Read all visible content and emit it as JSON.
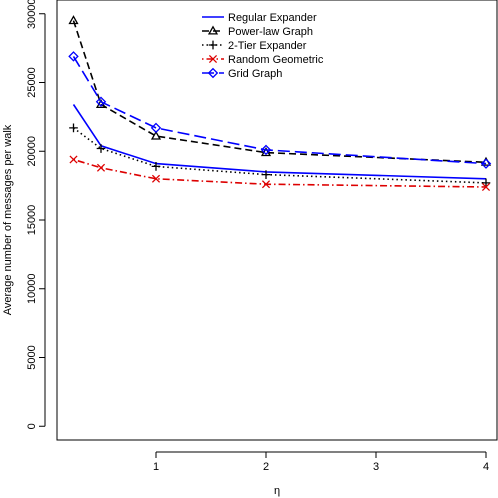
{
  "chart_data": {
    "type": "line",
    "title": "",
    "xlabel": "η",
    "ylabel": "Average number of messages per walk",
    "xlim": [
      0.1,
      4.1
    ],
    "ylim": [
      -1000,
      31000
    ],
    "x_ticks": [
      1,
      2,
      3,
      4
    ],
    "y_ticks": [
      0,
      5000,
      10000,
      15000,
      20000,
      25000,
      30000
    ],
    "grid": false,
    "legend_position": "top-right",
    "series": [
      {
        "name": "Regular Expander",
        "x": [
          0.25,
          0.5,
          1,
          2,
          4
        ],
        "y": [
          23400,
          20400,
          19100,
          18500,
          18000
        ],
        "color": "#0000ff",
        "line_style": "solid",
        "marker": "none"
      },
      {
        "name": "Power-law Graph",
        "x": [
          0.25,
          0.5,
          1,
          2,
          4
        ],
        "y": [
          29500,
          23400,
          21100,
          19900,
          19200
        ],
        "color": "#000000",
        "line_style": "dashed",
        "marker": "triangle"
      },
      {
        "name": "2-Tier Expander",
        "x": [
          0.25,
          0.5,
          1,
          2,
          4
        ],
        "y": [
          21700,
          20200,
          18900,
          18300,
          17700
        ],
        "color": "#000000",
        "line_style": "dotted",
        "marker": "plus"
      },
      {
        "name": "Random Geometric",
        "x": [
          0.25,
          0.5,
          1,
          2,
          4
        ],
        "y": [
          19400,
          18800,
          18000,
          17600,
          17400
        ],
        "color": "#dd0000",
        "line_style": "dotdash",
        "marker": "cross"
      },
      {
        "name": "Grid Graph",
        "x": [
          0.25,
          0.5,
          1,
          2,
          4
        ],
        "y": [
          26900,
          23600,
          21700,
          20100,
          19100
        ],
        "color": "#0000ff",
        "line_style": "longdash",
        "marker": "diamond"
      }
    ]
  }
}
